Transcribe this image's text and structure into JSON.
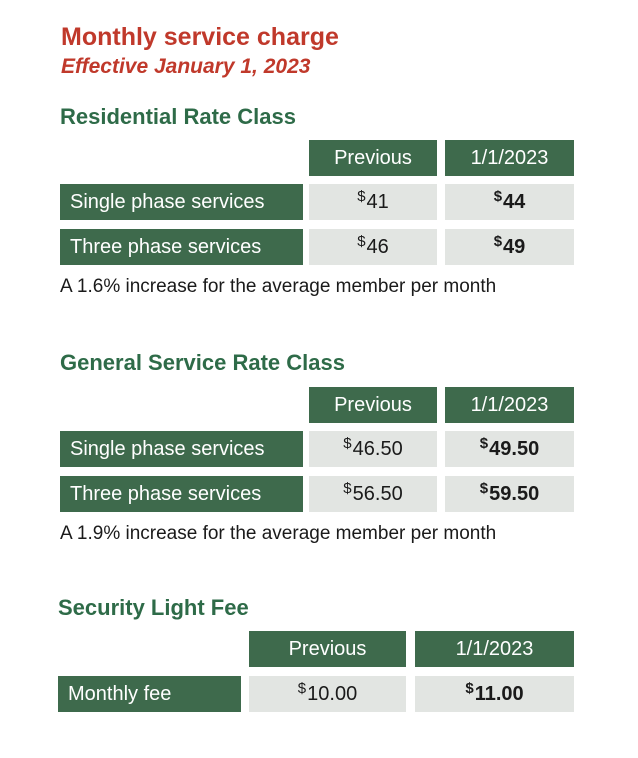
{
  "header": {
    "title": "Monthly service charge",
    "subtitle": "Effective January 1, 2023"
  },
  "residential": {
    "title": "Residential Rate Class",
    "col_previous": "Previous",
    "col_new": "1/1/2023",
    "rows": [
      {
        "label": "Single phase services",
        "previous": "41",
        "new": "44"
      },
      {
        "label": "Three phase services",
        "previous": "46",
        "new": "49"
      }
    ],
    "note": "A 1.6% increase for the average member per month"
  },
  "general": {
    "title": "General Service Rate Class",
    "col_previous": "Previous",
    "col_new": "1/1/2023",
    "rows": [
      {
        "label": "Single phase services",
        "previous": "46.50",
        "new": "49.50"
      },
      {
        "label": "Three phase services",
        "previous": "56.50",
        "new": "59.50"
      }
    ],
    "note": "A 1.9% increase for the average member per month"
  },
  "security": {
    "title": "Security Light Fee",
    "col_previous": "Previous",
    "col_new": "1/1/2023",
    "rows": [
      {
        "label": "Monthly fee",
        "previous": "10.00",
        "new": "11.00"
      }
    ]
  },
  "currency_symbol": "$",
  "colors": {
    "heading_red": "#c0392b",
    "section_green": "#2e6b48",
    "table_header_green": "#3e6a4c",
    "cell_gray": "#e2e5e2"
  }
}
